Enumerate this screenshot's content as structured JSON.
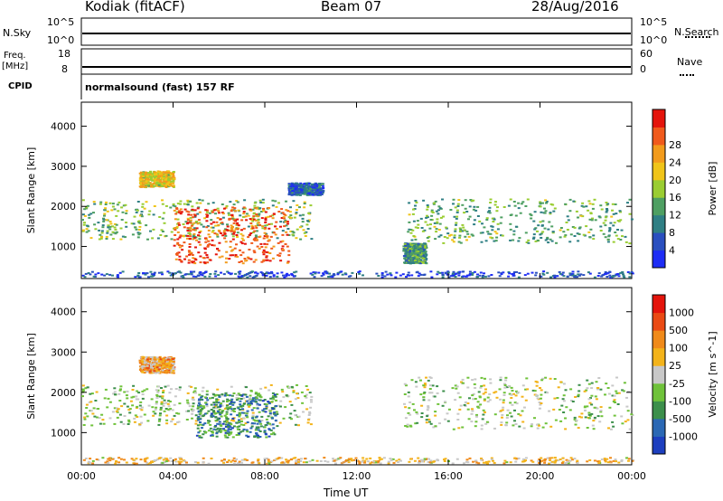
{
  "header": {
    "station": "Kodiak (fitACF)",
    "beam": "Beam 07",
    "date": "28/Aug/2016"
  },
  "params": {
    "nsky_label": "N.Sky",
    "nsearch_label": "N.Search",
    "nsky_ticks": [
      "10^5",
      "10^0"
    ],
    "nsearch_ticks": [
      "10^5",
      "10^0"
    ],
    "freq_label": "Freq.",
    "freq_unit": "[MHz]",
    "freq_ticks": [
      "18",
      "8"
    ],
    "nave_label": "Nave",
    "nave_ticks": [
      "60",
      "0"
    ],
    "cpid_label": "CPID",
    "cpid_value": "normalsound (fast) 157 RF"
  },
  "chart_data": [
    {
      "type": "heatmap",
      "name": "power",
      "ylabel": "Slant Range [km]",
      "xlabel": "Time UT",
      "yticks": [
        "1000",
        "2000",
        "3000",
        "4000"
      ],
      "ylim": [
        200,
        4600
      ],
      "colorbar_label": "Power [dB]",
      "colorbar_ticks": [
        "4",
        "8",
        "12",
        "16",
        "20",
        "24",
        "28"
      ],
      "colors": [
        "#1e2df5",
        "#2a4fbf",
        "#2f7f84",
        "#4e9f62",
        "#9acd32",
        "#f0c419",
        "#f29b1c",
        "#f05a1c",
        "#e4140c"
      ],
      "features": [
        {
          "t": [
            0,
            10
          ],
          "r": [
            1200,
            2200
          ],
          "level": 0.45
        },
        {
          "t": [
            4,
            9
          ],
          "r": [
            600,
            2000
          ],
          "level": 0.85
        },
        {
          "t": [
            2.5,
            4
          ],
          "r": [
            2500,
            2900
          ],
          "level": 0.6
        },
        {
          "t": [
            9,
            10.5
          ],
          "r": [
            2300,
            2600
          ],
          "level": 0.2
        },
        {
          "t": [
            14,
            24
          ],
          "r": [
            1100,
            2200
          ],
          "level": 0.4
        },
        {
          "t": [
            14,
            15
          ],
          "r": [
            600,
            1100
          ],
          "level": 0.35
        },
        {
          "t": [
            0,
            24
          ],
          "r": [
            250,
            400
          ],
          "level": 0.15
        }
      ]
    },
    {
      "type": "heatmap",
      "name": "velocity",
      "ylabel": "Slant Range [km]",
      "xlabel": "Time UT",
      "yticks": [
        "1000",
        "2000",
        "3000",
        "4000"
      ],
      "ylim": [
        200,
        4600
      ],
      "colorbar_label": "Velocity [m s^-1]",
      "colorbar_ticks": [
        "1000",
        "500",
        "100",
        "25",
        "-25",
        "-100",
        "-500",
        "-1000"
      ],
      "colors": [
        "#1d3fbf",
        "#2b68b4",
        "#3c8f4b",
        "#6fc23a",
        "#c8c8c8",
        "#f3b31a",
        "#f08a1a",
        "#ea4a14",
        "#e4140c"
      ],
      "features": [
        {
          "t": [
            0,
            10
          ],
          "r": [
            1200,
            2200
          ],
          "level": 0.45
        },
        {
          "t": [
            5,
            8.5
          ],
          "r": [
            900,
            2000
          ],
          "level": 0.25
        },
        {
          "t": [
            2.5,
            4
          ],
          "r": [
            2500,
            2900
          ],
          "level": 0.65
        },
        {
          "t": [
            14,
            24
          ],
          "r": [
            1100,
            2400
          ],
          "level": 0.45
        },
        {
          "t": [
            0,
            24
          ],
          "r": [
            250,
            400
          ],
          "level": 0.6
        }
      ]
    }
  ],
  "xaxis": {
    "label": "Time UT",
    "ticks": [
      "00:00",
      "04:00",
      "08:00",
      "12:00",
      "16:00",
      "20:00",
      "00:00"
    ],
    "range_hours": [
      0,
      24
    ]
  }
}
